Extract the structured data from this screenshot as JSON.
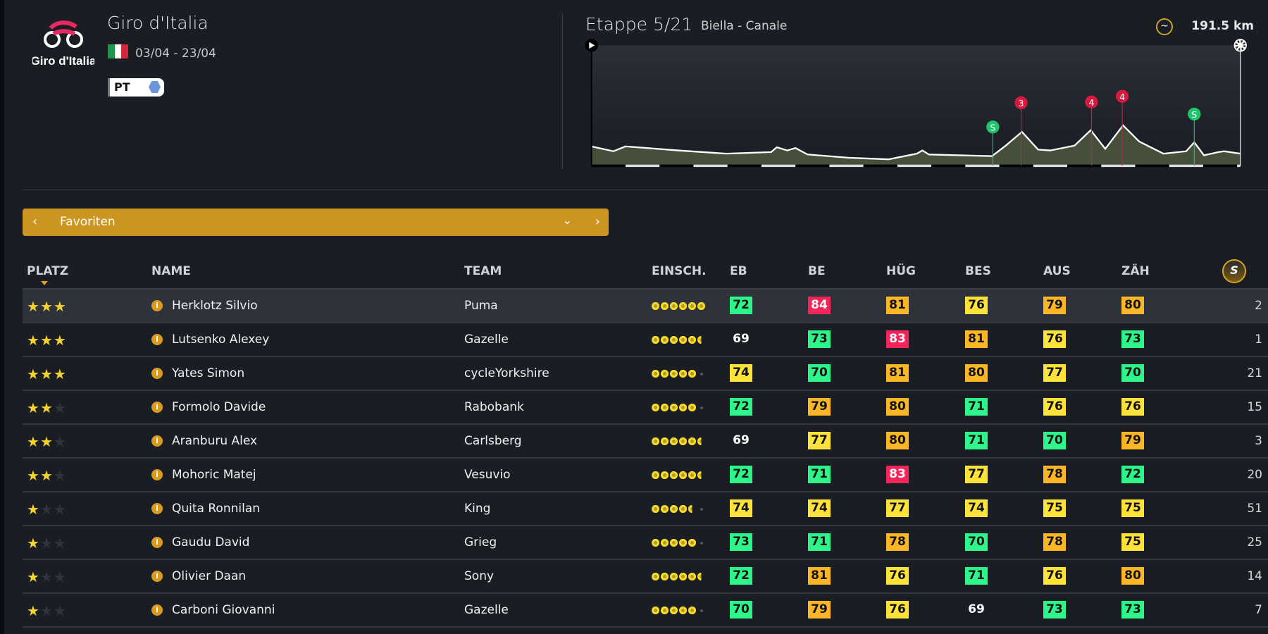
{
  "race": {
    "logo_text": "Giro d'Italia",
    "title": "Giro d'Italia",
    "dates": "03/04 - 23/04",
    "flag": "italy",
    "badge": "PT"
  },
  "stage": {
    "title": "Etappe 5/21",
    "route": "Biella - Canale",
    "profile_type_icon": "hilly-icon",
    "distance": "191.5 km",
    "markers": [
      {
        "type": "sprint",
        "label": "S",
        "color": "#1fc46b"
      },
      {
        "type": "climb",
        "label": "3",
        "color": "#d7193f"
      },
      {
        "type": "climb",
        "label": "4",
        "color": "#d7193f"
      },
      {
        "type": "climb",
        "label": "4",
        "color": "#d7193f"
      },
      {
        "type": "sprint",
        "label": "S",
        "color": "#1fc46b"
      }
    ]
  },
  "filter": {
    "label": "Favoriten",
    "prev_icon": "chevron-left-icon",
    "dropdown_icon": "chevron-down-icon",
    "next_icon": "chevron-right-icon"
  },
  "table": {
    "headers": {
      "platz": "PLATZ",
      "name": "NAME",
      "team": "TEAM",
      "einsch": "EINSCH.",
      "eb": "EB",
      "be": "BE",
      "hug": "HÜG",
      "bes": "BES",
      "aus": "AUS",
      "zah": "ZÄH",
      "last_icon": "sprinter-icon"
    },
    "colors": {
      "green": "#2ef58a",
      "yellow": "#fde23a",
      "orange": "#fbb626",
      "red": "#f5255a"
    },
    "rows": [
      {
        "stars": 3,
        "name": "Herklotz Silvio",
        "team": "Puma",
        "einsch": 6,
        "stats": [
          72,
          84,
          81,
          76,
          79,
          80
        ],
        "num": "2"
      },
      {
        "stars": 3,
        "name": "Lutsenko Alexey",
        "team": "Gazelle",
        "einsch": 5.5,
        "stats": [
          69,
          73,
          83,
          81,
          76,
          73
        ],
        "num": "1"
      },
      {
        "stars": 3,
        "name": "Yates Simon",
        "team": "cycleYorkshire",
        "einsch": 5,
        "stats": [
          74,
          70,
          81,
          80,
          77,
          70
        ],
        "num": "21"
      },
      {
        "stars": 2,
        "name": "Formolo Davide",
        "team": "Rabobank",
        "einsch": 5,
        "stats": [
          72,
          79,
          80,
          71,
          76,
          76
        ],
        "num": "15"
      },
      {
        "stars": 2,
        "name": "Aranburu Alex",
        "team": "Carlsberg",
        "einsch": 5.5,
        "stats": [
          69,
          77,
          80,
          71,
          70,
          79
        ],
        "num": "3"
      },
      {
        "stars": 2,
        "name": "Mohoric Matej",
        "team": "Vesuvio",
        "einsch": 5.5,
        "stats": [
          72,
          71,
          83,
          77,
          78,
          72
        ],
        "num": "20"
      },
      {
        "stars": 1,
        "name": "Quita Ronnilan",
        "team": "King",
        "einsch": 4.5,
        "stats": [
          74,
          74,
          77,
          74,
          75,
          75
        ],
        "num": "51"
      },
      {
        "stars": 1,
        "name": "Gaudu David",
        "team": "Grieg",
        "einsch": 5,
        "stats": [
          73,
          71,
          78,
          70,
          78,
          75
        ],
        "num": "25"
      },
      {
        "stars": 1,
        "name": "Olivier Daan",
        "team": "Sony",
        "einsch": 5.5,
        "stats": [
          72,
          81,
          76,
          71,
          76,
          80
        ],
        "num": "14"
      },
      {
        "stars": 1,
        "name": "Carboni Giovanni",
        "team": "Gazelle",
        "einsch": 5,
        "stats": [
          70,
          79,
          76,
          69,
          73,
          73
        ],
        "num": "7"
      }
    ]
  }
}
